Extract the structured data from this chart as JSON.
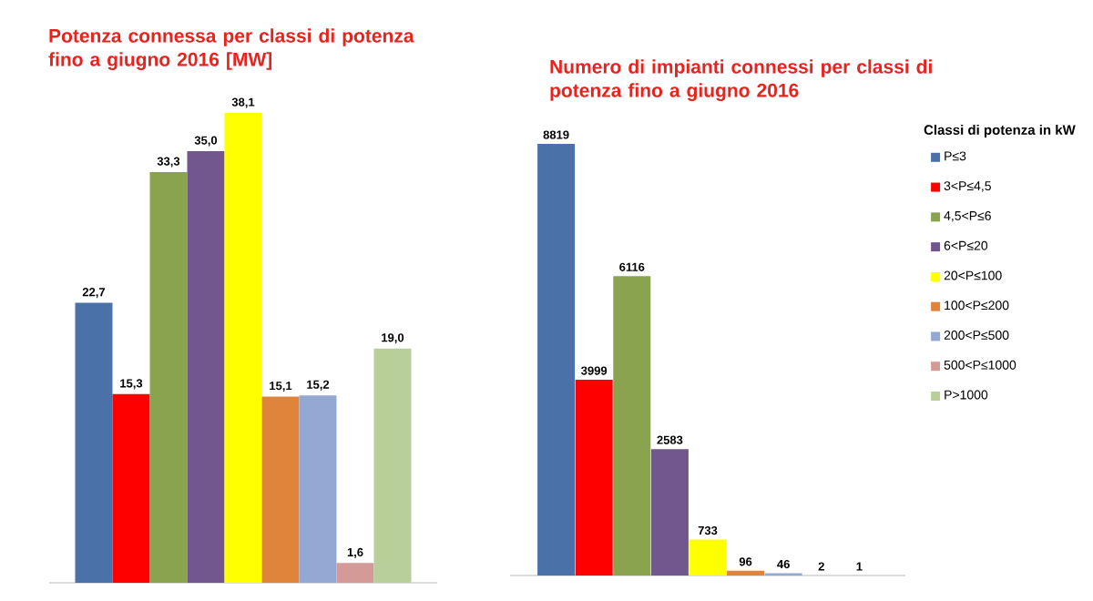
{
  "chart_data": [
    {
      "type": "bar",
      "title": "Potenza connessa per classi di potenza fino a giugno 2016 [MW]",
      "categories": [
        null
      ],
      "series": [
        {
          "color": "#4a72a8",
          "values": [
            22.7
          ],
          "value_labels": [
            "22,7"
          ]
        },
        {
          "color": "#ff0000",
          "values": [
            15.3
          ],
          "value_labels": [
            "15,3"
          ]
        },
        {
          "color": "#8aa34f",
          "values": [
            33.3
          ],
          "value_labels": [
            "33,3"
          ]
        },
        {
          "color": "#72578f",
          "values": [
            35.0
          ],
          "value_labels": [
            "35,0"
          ]
        },
        {
          "color": "#ffff00",
          "values": [
            38.1
          ],
          "value_labels": [
            "38,1"
          ]
        },
        {
          "color": "#e0843c",
          "values": [
            15.1
          ],
          "value_labels": [
            "15,1"
          ]
        },
        {
          "color": "#93a9d3",
          "values": [
            15.2
          ],
          "value_labels": [
            "15,2"
          ]
        },
        {
          "color": "#d49a98",
          "values": [
            1.6
          ],
          "value_labels": [
            "1,6"
          ]
        },
        {
          "color": "#b9cf99",
          "values": [
            19.0
          ],
          "value_labels": [
            "19,0"
          ]
        }
      ]
    },
    {
      "type": "bar",
      "title": "Numero di impianti connessi per classi di potenza fino a giugno 2016",
      "categories": [
        null
      ],
      "data_labels": true,
      "legend": "right",
      "legend_title": "Classi di potenza in kW",
      "series": [
        {
          "name": "P≤3",
          "color": "#4a72a8",
          "values": [
            8819
          ]
        },
        {
          "name": "3<P≤4,5",
          "color": "#ff0000",
          "values": [
            3999
          ]
        },
        {
          "name": "4,5<P≤6",
          "color": "#8aa34f",
          "values": [
            6116
          ]
        },
        {
          "name": "6<P≤20",
          "color": "#72578f",
          "values": [
            2583
          ]
        },
        {
          "name": "20<P≤100",
          "color": "#ffff00",
          "values": [
            733
          ]
        },
        {
          "name": "100<P≤200",
          "color": "#e0843c",
          "values": [
            96
          ]
        },
        {
          "name": "200<P≤500",
          "color": "#93a9d3",
          "values": [
            46
          ]
        },
        {
          "name": "500<P≤1000",
          "color": "#d49a98",
          "values": [
            2
          ]
        },
        {
          "name": "P>1000",
          "color": "#b9cf99",
          "values": [
            1
          ]
        }
      ]
    }
  ]
}
